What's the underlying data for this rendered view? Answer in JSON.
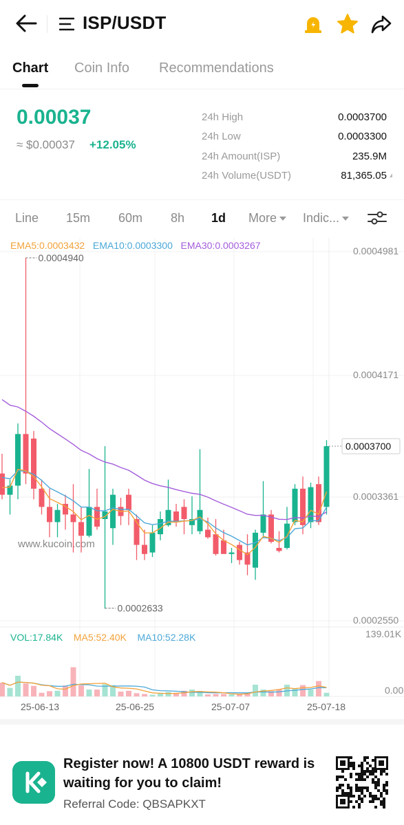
{
  "header": {
    "title": "ISP/USDT",
    "back_icon": "arrow-left-icon",
    "menu_icon": "menu-icon",
    "alert_icon": "price-alert-icon",
    "favorite_icon": "star-icon",
    "share_icon": "share-icon"
  },
  "tabs": [
    "Chart",
    "Coin Info",
    "Recommendations"
  ],
  "active_tab": "Chart",
  "price": {
    "last": "0.00037",
    "usd": "≈ $0.00037",
    "change": "+12.05%",
    "stats": [
      {
        "label": "24h High",
        "value": "0.0003700"
      },
      {
        "label": "24h Low",
        "value": "0.0003300"
      },
      {
        "label": "24h Amount(ISP)",
        "value": "235.9M"
      },
      {
        "label": "24h Volume(USDT)",
        "value": "81,365.05"
      }
    ]
  },
  "intervals": {
    "items": [
      "Line",
      "15m",
      "60m",
      "8h",
      "1d",
      "More",
      "Indic..."
    ],
    "active": "1d",
    "settings_icon": "sliders-icon"
  },
  "chart_data": {
    "type": "candlestick",
    "interval": "1d",
    "ema_legend": {
      "ema5": "EMA5:0.0003432",
      "ema10": "EMA10:0.0003300",
      "ema30": "EMA30:0.0003267"
    },
    "price_axis_labels": [
      "0.0004981",
      "0.0004171",
      "0.0003361",
      "0.0002550"
    ],
    "current_price_label": "0.0003700",
    "high_marker": "0.0004940",
    "low_marker": "0.0002633",
    "volume_legend": {
      "vol": "VOL:17.84K",
      "ma5": "MA5:52.40K",
      "ma10": "MA10:52.28K"
    },
    "volume_axis_labels": [
      "139.01K",
      "0.00"
    ],
    "date_labels": [
      "25-06-13",
      "25-06-25",
      "25-07-07",
      "25-07-18"
    ],
    "watermark": "www.kucoin.com",
    "candles": [
      {
        "o": 0.000352,
        "h": 0.000365,
        "l": 0.000335,
        "c": 0.000338
      },
      {
        "o": 0.000338,
        "h": 0.000348,
        "l": 0.000325,
        "c": 0.000344
      },
      {
        "o": 0.000344,
        "h": 0.000385,
        "l": 0.000335,
        "c": 0.000378
      },
      {
        "o": 0.000378,
        "h": 0.000494,
        "l": 0.000345,
        "c": 0.000352
      },
      {
        "o": 0.000375,
        "h": 0.00038,
        "l": 0.000335,
        "c": 0.000342
      },
      {
        "o": 0.000342,
        "h": 0.000348,
        "l": 0.000325,
        "c": 0.00033
      },
      {
        "o": 0.00033,
        "h": 0.000342,
        "l": 0.00031,
        "c": 0.00032
      },
      {
        "o": 0.00032,
        "h": 0.000332,
        "l": 0.00031,
        "c": 0.000328
      },
      {
        "o": 0.000332,
        "h": 0.000338,
        "l": 0.000315,
        "c": 0.000325
      },
      {
        "o": 0.000325,
        "h": 0.000345,
        "l": 0.0003,
        "c": 0.00032
      },
      {
        "o": 0.00032,
        "h": 0.00033,
        "l": 0.0003,
        "c": 0.000311
      },
      {
        "o": 0.000311,
        "h": 0.000355,
        "l": 0.00031,
        "c": 0.00033
      },
      {
        "o": 0.00033,
        "h": 0.000342,
        "l": 0.000315,
        "c": 0.000317
      },
      {
        "o": 0.000322,
        "h": 0.00037,
        "l": 0.000263,
        "c": 0.000327
      },
      {
        "o": 0.000316,
        "h": 0.000342,
        "l": 0.000305,
        "c": 0.000338
      },
      {
        "o": 0.00033,
        "h": 0.000336,
        "l": 0.000318,
        "c": 0.000324
      },
      {
        "o": 0.000338,
        "h": 0.000342,
        "l": 0.000318,
        "c": 0.000328
      },
      {
        "o": 0.000322,
        "h": 0.000325,
        "l": 0.000295,
        "c": 0.000305
      },
      {
        "o": 0.000305,
        "h": 0.000315,
        "l": 0.000295,
        "c": 0.000299
      },
      {
        "o": 0.0003,
        "h": 0.000318,
        "l": 0.000297,
        "c": 0.000313
      },
      {
        "o": 0.000312,
        "h": 0.000327,
        "l": 0.000308,
        "c": 0.000322
      },
      {
        "o": 0.000318,
        "h": 0.000348,
        "l": 0.000317,
        "c": 0.000328
      },
      {
        "o": 0.000327,
        "h": 0.000332,
        "l": 0.000317,
        "c": 0.00032
      },
      {
        "o": 0.00033,
        "h": 0.000335,
        "l": 0.000312,
        "c": 0.000322
      },
      {
        "o": 0.000318,
        "h": 0.000337,
        "l": 0.000312,
        "c": 0.000322
      },
      {
        "o": 0.000314,
        "h": 0.000368,
        "l": 0.000312,
        "c": 0.000328
      },
      {
        "o": 0.000315,
        "h": 0.000323,
        "l": 0.000309,
        "c": 0.00031
      },
      {
        "o": 0.000312,
        "h": 0.000322,
        "l": 0.000298,
        "c": 0.000299
      },
      {
        "o": 0.000308,
        "h": 0.000315,
        "l": 0.0003,
        "c": 0.000299
      },
      {
        "o": 0.000299,
        "h": 0.000303,
        "l": 0.000293,
        "c": 0.0003
      },
      {
        "o": 0.000305,
        "h": 0.000307,
        "l": 0.000292,
        "c": 0.000295
      },
      {
        "o": 0.0003,
        "h": 0.000312,
        "l": 0.000285,
        "c": 0.000292
      },
      {
        "o": 0.00029,
        "h": 0.000315,
        "l": 0.000282,
        "c": 0.000313
      },
      {
        "o": 0.000313,
        "h": 0.000347,
        "l": 0.00031,
        "c": 0.000325
      },
      {
        "o": 0.000325,
        "h": 0.000328,
        "l": 0.000306,
        "c": 0.000307
      },
      {
        "o": 0.000303,
        "h": 0.000314,
        "l": 0.0003,
        "c": 0.000301
      },
      {
        "o": 0.000303,
        "h": 0.00033,
        "l": 0.000302,
        "c": 0.000319
      },
      {
        "o": 0.00032,
        "h": 0.000345,
        "l": 0.000318,
        "c": 0.000342
      },
      {
        "o": 0.000342,
        "h": 0.00035,
        "l": 0.000312,
        "c": 0.000318
      },
      {
        "o": 0.00032,
        "h": 0.000346,
        "l": 0.000316,
        "c": 0.000343
      },
      {
        "o": 0.000345,
        "h": 0.00035,
        "l": 0.000318,
        "c": 0.00032
      },
      {
        "o": 0.00033,
        "h": 0.000374,
        "l": 0.000325,
        "c": 0.00037
      }
    ],
    "volume": [
      34,
      21,
      51,
      32,
      26,
      9,
      13,
      14,
      27,
      72,
      27,
      17,
      17,
      30,
      28,
      12,
      14,
      8,
      6,
      4,
      7,
      11,
      9,
      14,
      17,
      11,
      5,
      6,
      6,
      5,
      6,
      9,
      29,
      17,
      13,
      18,
      29,
      19,
      28,
      17,
      38,
      9
    ],
    "vol_max": 139.01
  },
  "promo": {
    "logo_icon": "kucoin-logo-icon",
    "headline": "Register now! A 10800 USDT reward is waiting for you to claim!",
    "referral": "Referral Code: QBSAPKXT",
    "qr_icon": "qr-code-icon"
  },
  "colors": {
    "up": "#1ab38f",
    "down": "#f25c6a",
    "ema5": "#f2a23a",
    "ema10": "#4aa8d8",
    "ema30": "#a35ddb"
  }
}
